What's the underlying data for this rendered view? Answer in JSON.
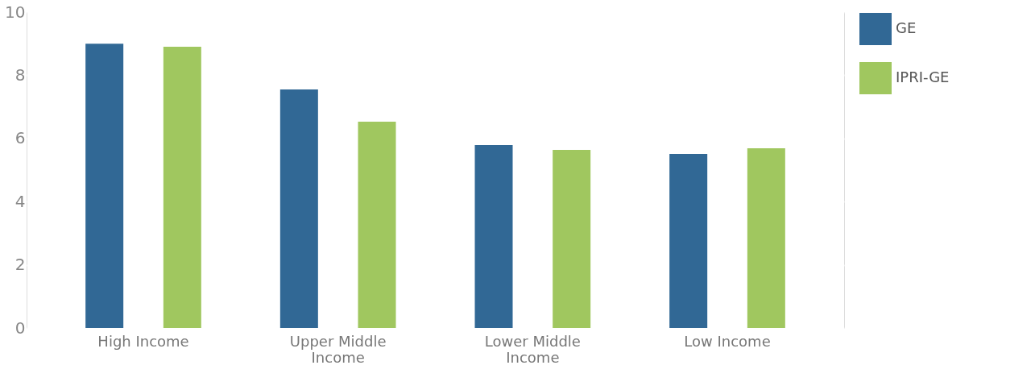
{
  "chart_data": {
    "type": "bar",
    "categories": [
      "High Income",
      "Upper Middle Income",
      "Lower Middle Income",
      "Low Income"
    ],
    "series": [
      {
        "name": "GE",
        "color": "#316895",
        "values": [
          9.0,
          7.55,
          5.79,
          5.51
        ]
      },
      {
        "name": "IPRI-GE",
        "color": "#a0c75f",
        "values": [
          8.9,
          6.53,
          5.64,
          5.69
        ]
      }
    ],
    "ylim": [
      0,
      10
    ],
    "yticks": [
      0,
      2,
      4,
      6,
      8,
      10
    ],
    "grid": "y",
    "legend": "right"
  }
}
